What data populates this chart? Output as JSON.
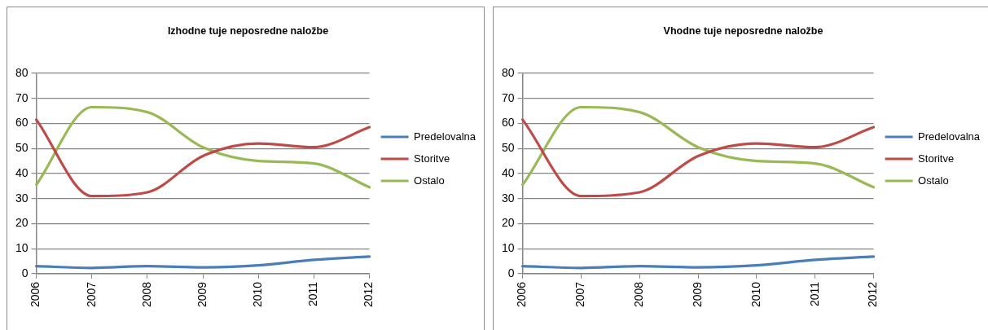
{
  "chart_data": [
    {
      "type": "line",
      "title": "Izhodne tuje neposredne naložbe",
      "categories": [
        "2006",
        "2007",
        "2008",
        "2009",
        "2010",
        "2011",
        "2012"
      ],
      "series": [
        {
          "name": "Predelovalna",
          "color": "#4a7ebb",
          "values": [
            3,
            2.3,
            3,
            2.5,
            3.3,
            5.5,
            6.8
          ]
        },
        {
          "name": "Storitve",
          "color": "#be4b48",
          "values": [
            61.5,
            31,
            32.5,
            47,
            52,
            50.5,
            58.5
          ]
        },
        {
          "name": "Ostalo",
          "color": "#98b954",
          "values": [
            35.5,
            66.5,
            64.5,
            50.5,
            45,
            44,
            34.5
          ]
        }
      ],
      "ylim": [
        0,
        80
      ],
      "yticks": [
        0,
        10,
        20,
        30,
        40,
        50,
        60,
        70,
        80
      ],
      "grid": "y",
      "legend": "right",
      "marker": "none",
      "line_style": "solid"
    },
    {
      "type": "line",
      "title": "Vhodne tuje neposredne naložbe",
      "categories": [
        "2006",
        "2007",
        "2008",
        "2009",
        "2010",
        "2011",
        "2012"
      ],
      "series": [
        {
          "name": "Predelovalna",
          "color": "#4a7ebb",
          "values": [
            3,
            2.3,
            3,
            2.5,
            3.3,
            5.5,
            6.8
          ]
        },
        {
          "name": "Storitve",
          "color": "#be4b48",
          "values": [
            61.5,
            31,
            32.5,
            47,
            52,
            50.5,
            58.5
          ]
        },
        {
          "name": "Ostalo",
          "color": "#98b954",
          "values": [
            35.5,
            66.5,
            64.5,
            50.5,
            45,
            44,
            34.5
          ]
        }
      ],
      "ylim": [
        0,
        80
      ],
      "yticks": [
        0,
        10,
        20,
        30,
        40,
        50,
        60,
        70,
        80
      ],
      "grid": "y",
      "legend": "right",
      "marker": "none",
      "line_style": "solid"
    }
  ]
}
